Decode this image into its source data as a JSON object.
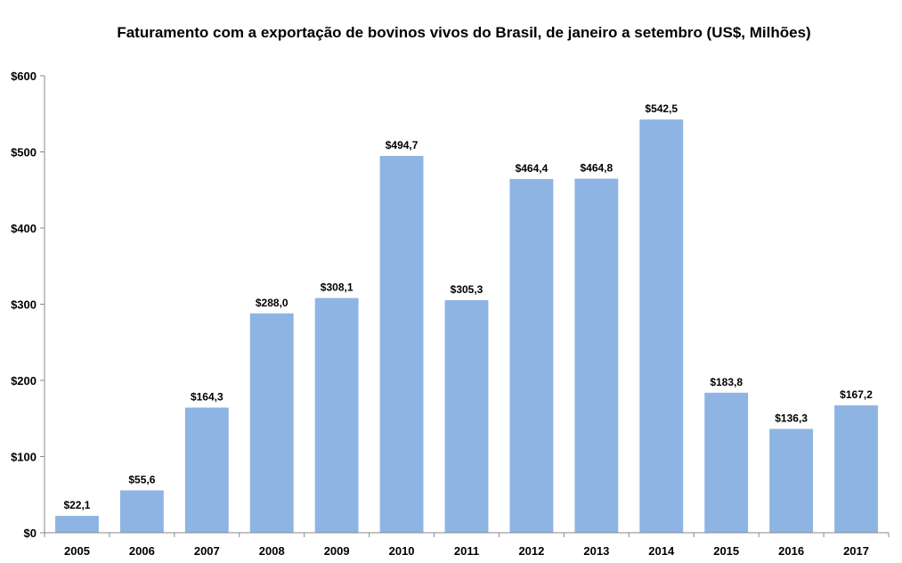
{
  "chart_data": {
    "type": "bar",
    "title": "Faturamento com a  exportação de bovinos vivos do Brasil, de janeiro a setembro (US$, Milhões)",
    "xlabel": "",
    "ylabel": "",
    "categories": [
      "2005",
      "2006",
      "2007",
      "2008",
      "2009",
      "2010",
      "2011",
      "2012",
      "2013",
      "2014",
      "2015",
      "2016",
      "2017"
    ],
    "values": [
      22.1,
      55.6,
      164.3,
      288.0,
      308.1,
      494.7,
      305.3,
      464.4,
      464.8,
      542.5,
      183.8,
      136.3,
      167.2
    ],
    "value_labels": [
      "$22,1",
      "$55,6",
      "$164,3",
      "$288,0",
      "$308,1",
      "$494,7",
      "$305,3",
      "$464,4",
      "$464,8",
      "$542,5",
      "$183,8",
      "$136,3",
      "$167,2"
    ],
    "ylim": [
      0,
      600
    ],
    "y_ticks": [
      0,
      100,
      200,
      300,
      400,
      500,
      600
    ],
    "y_tick_labels": [
      "$0",
      "$100",
      "$200",
      "$300",
      "$400",
      "$500",
      "$600"
    ],
    "grid": false,
    "legend": "none",
    "bar_color": "#8EB4E3"
  }
}
